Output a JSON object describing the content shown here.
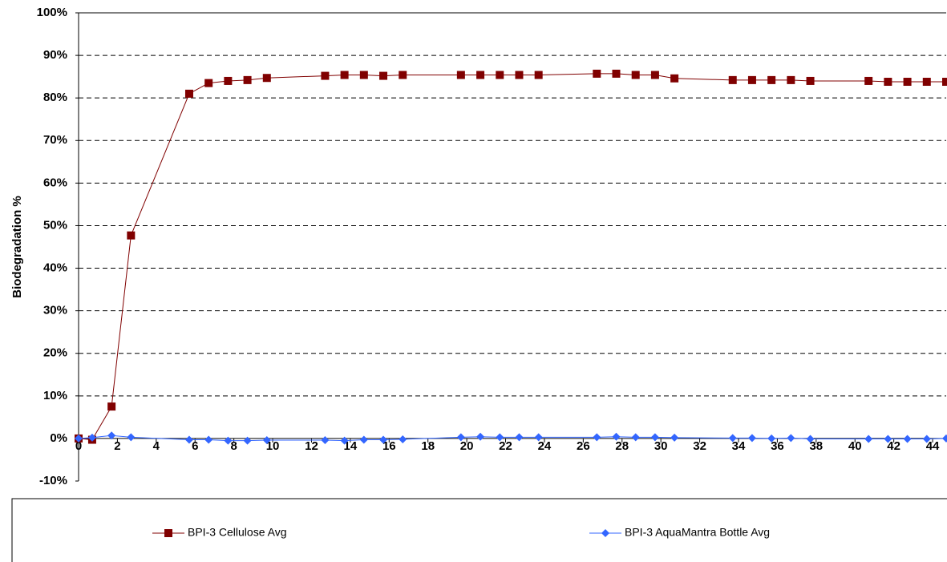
{
  "chart_data": {
    "type": "line",
    "y_label": "Biodegradation %",
    "x": [
      0,
      0.7,
      1.7,
      2.7,
      5.7,
      6.7,
      7.7,
      8.7,
      9.7,
      12.7,
      13.7,
      14.7,
      15.7,
      16.7,
      19.7,
      20.7,
      21.7,
      22.7,
      23.7,
      26.7,
      27.7,
      28.7,
      29.7,
      30.7,
      33.7,
      34.7,
      35.7,
      36.7,
      37.7,
      40.7,
      41.7,
      42.7,
      43.7,
      44.7
    ],
    "series": [
      {
        "name": "BPI-3 Cellulose Avg",
        "color": "#800000",
        "marker": "square",
        "values": [
          0,
          -0.3,
          7.5,
          47.7,
          81,
          83.5,
          84,
          84.2,
          84.7,
          85.2,
          85.4,
          85.4,
          85.2,
          85.4,
          85.4,
          85.4,
          85.4,
          85.4,
          85.4,
          85.7,
          85.7,
          85.4,
          85.4,
          84.6,
          84.2,
          84.2,
          84.2,
          84.2,
          84,
          84,
          83.8,
          83.8,
          83.8,
          83.8
        ]
      },
      {
        "name": "BPI-3 AquaMantra Bottle Avg",
        "color": "#3366ff",
        "marker": "diamond",
        "values": [
          0,
          0.2,
          0.7,
          0.3,
          -0.3,
          -0.3,
          -0.5,
          -0.5,
          -0.4,
          -0.4,
          -0.5,
          -0.3,
          -0.3,
          -0.2,
          0.3,
          0.4,
          0.3,
          0.3,
          0.3,
          0.3,
          0.4,
          0.3,
          0.3,
          0.2,
          0.1,
          0.1,
          0,
          0.1,
          -0.1,
          -0.1,
          -0.1,
          -0.1,
          -0.1,
          0
        ]
      }
    ],
    "xlim": [
      0,
      44.7
    ],
    "xticks": [
      0,
      2,
      4,
      6,
      8,
      10,
      12,
      14,
      16,
      18,
      20,
      22,
      24,
      26,
      28,
      30,
      32,
      34,
      36,
      38,
      40,
      42,
      44
    ],
    "ylim": [
      -10,
      100
    ],
    "yticks": [
      {
        "value": -10,
        "label": "-10%"
      },
      {
        "value": 0,
        "label": "0%"
      },
      {
        "value": 10,
        "label": "10%"
      },
      {
        "value": 20,
        "label": "20%"
      },
      {
        "value": 30,
        "label": "30%"
      },
      {
        "value": 40,
        "label": "40%"
      },
      {
        "value": 50,
        "label": "50%"
      },
      {
        "value": 60,
        "label": "60%"
      },
      {
        "value": 70,
        "label": "70%"
      },
      {
        "value": 80,
        "label": "80%"
      },
      {
        "value": 90,
        "label": "90%"
      },
      {
        "value": 100,
        "label": "100%"
      }
    ],
    "grid": true,
    "legend": "bottom"
  }
}
